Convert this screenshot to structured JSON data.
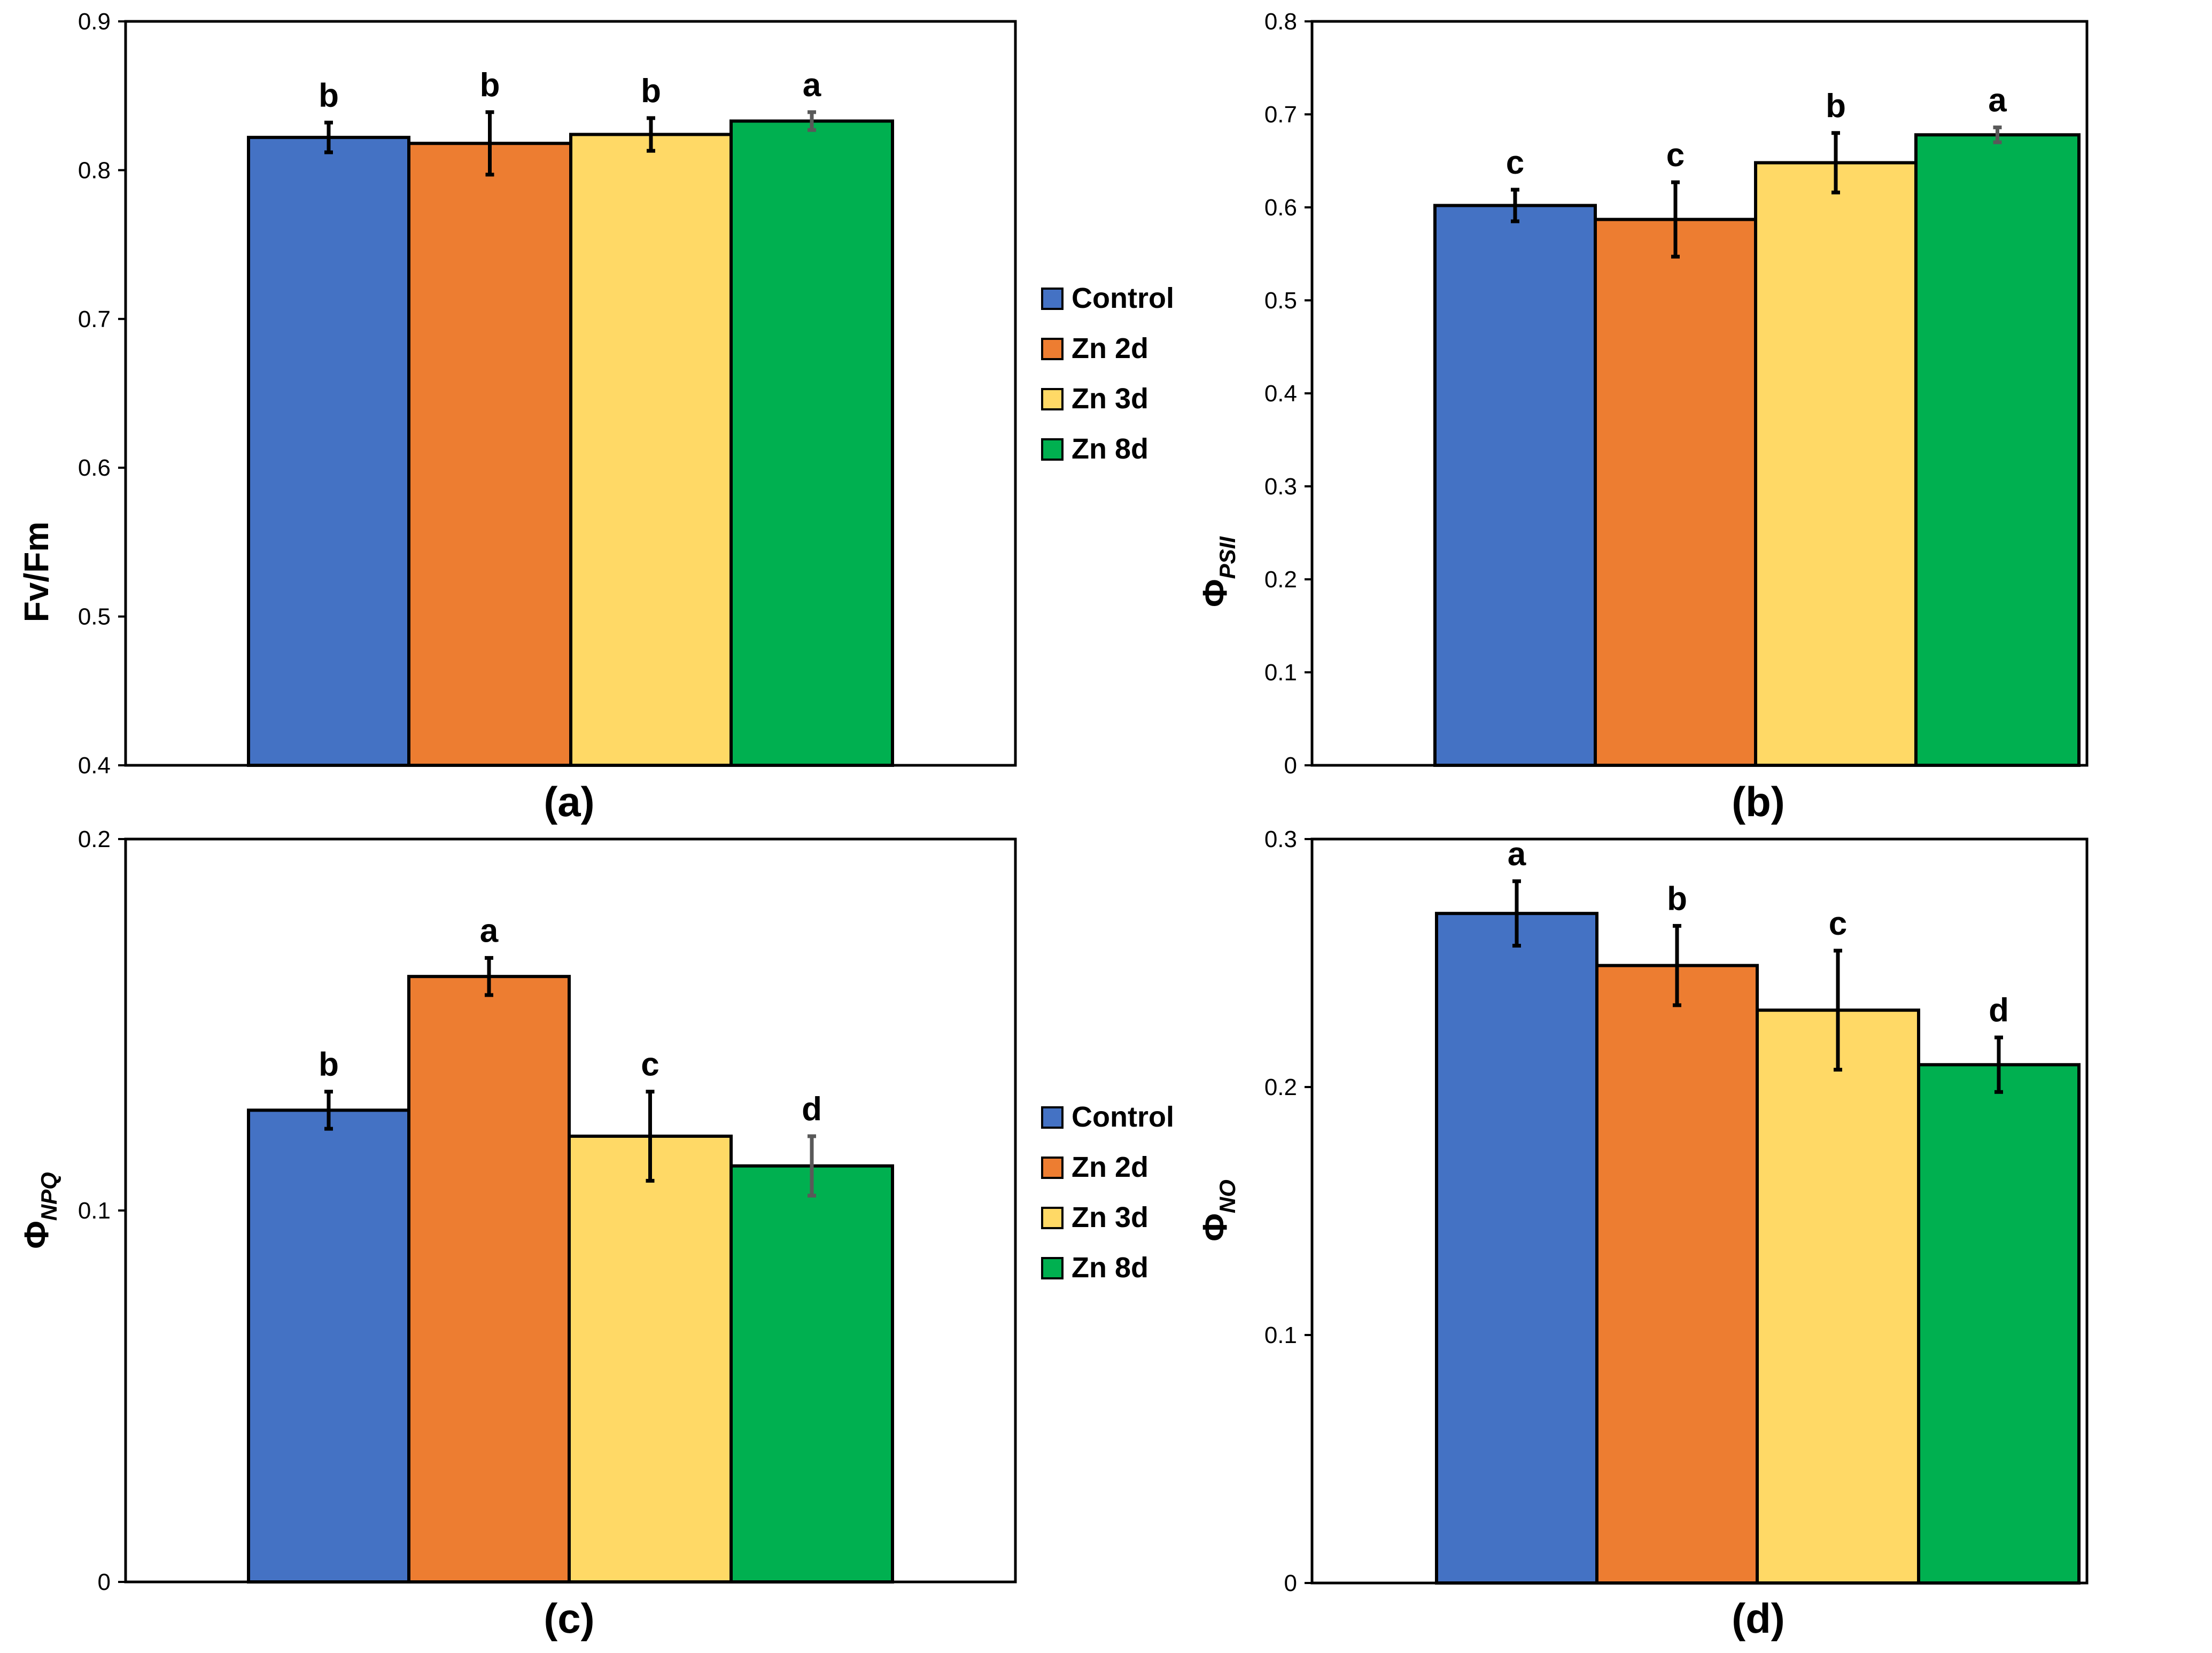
{
  "series_names": [
    "Control",
    "Zn 2d",
    "Zn 3d",
    "Zn 8d"
  ],
  "colors": {
    "Control": "#4472C4",
    "Zn 2d": "#ED7D31",
    "Zn 3d": "#FFD966",
    "Zn 8d": "#00B050",
    "error_bar": "#000000",
    "error_bar_light": "#595959"
  },
  "chart_data": [
    {
      "type": "bar",
      "panel": "(a)",
      "ylabel": "Fv/Fm",
      "ylabel_sub": "",
      "ylim": [
        0.4,
        0.9
      ],
      "yticks": [
        "0.4",
        "0.5",
        "0.6",
        "0.7",
        "0.8",
        "0.9"
      ],
      "categories": [
        "Control",
        "Zn 2d",
        "Zn 3d",
        "Zn 8d"
      ],
      "values": [
        0.822,
        0.818,
        0.824,
        0.833
      ],
      "errors": [
        0.01,
        0.021,
        0.011,
        0.006
      ],
      "letters": [
        "b",
        "b",
        "b",
        "a"
      ],
      "legend": true
    },
    {
      "type": "bar",
      "panel": "(b)",
      "ylabel": "Φ",
      "ylabel_sub": "PSII",
      "ylim": [
        0,
        0.8
      ],
      "yticks": [
        "0",
        "0.1",
        "0.2",
        "0.3",
        "0.4",
        "0.5",
        "0.6",
        "0.7",
        "0.8"
      ],
      "categories": [
        "Control",
        "Zn 2d",
        "Zn 3d",
        "Zn 8d"
      ],
      "values": [
        0.602,
        0.587,
        0.648,
        0.678
      ],
      "errors": [
        0.017,
        0.04,
        0.032,
        0.008
      ],
      "letters": [
        "c",
        "c",
        "b",
        "a"
      ],
      "legend": false
    },
    {
      "type": "bar",
      "panel": "(c)",
      "ylabel": "Φ",
      "ylabel_sub": "NPQ",
      "ylim": [
        0,
        0.2
      ],
      "yticks": [
        "0",
        "0.1",
        "0.2"
      ],
      "categories": [
        "Control",
        "Zn 2d",
        "Zn 3d",
        "Zn 8d"
      ],
      "values": [
        0.127,
        0.163,
        0.12,
        0.112
      ],
      "errors": [
        0.005,
        0.005,
        0.012,
        0.008
      ],
      "letters": [
        "b",
        "a",
        "c",
        "d"
      ],
      "legend": true
    },
    {
      "type": "bar",
      "panel": "(d)",
      "ylabel": "Φ",
      "ylabel_sub": "NO",
      "ylim": [
        0,
        0.3
      ],
      "yticks": [
        "0",
        "0.1",
        "0.2",
        "0.3"
      ],
      "categories": [
        "Control",
        "Zn 2d",
        "Zn 3d",
        "Zn 8d"
      ],
      "values": [
        0.27,
        0.249,
        0.231,
        0.209
      ],
      "errors": [
        0.013,
        0.016,
        0.024,
        0.011
      ],
      "letters": [
        "a",
        "b",
        "c",
        "d"
      ],
      "legend": false
    }
  ]
}
